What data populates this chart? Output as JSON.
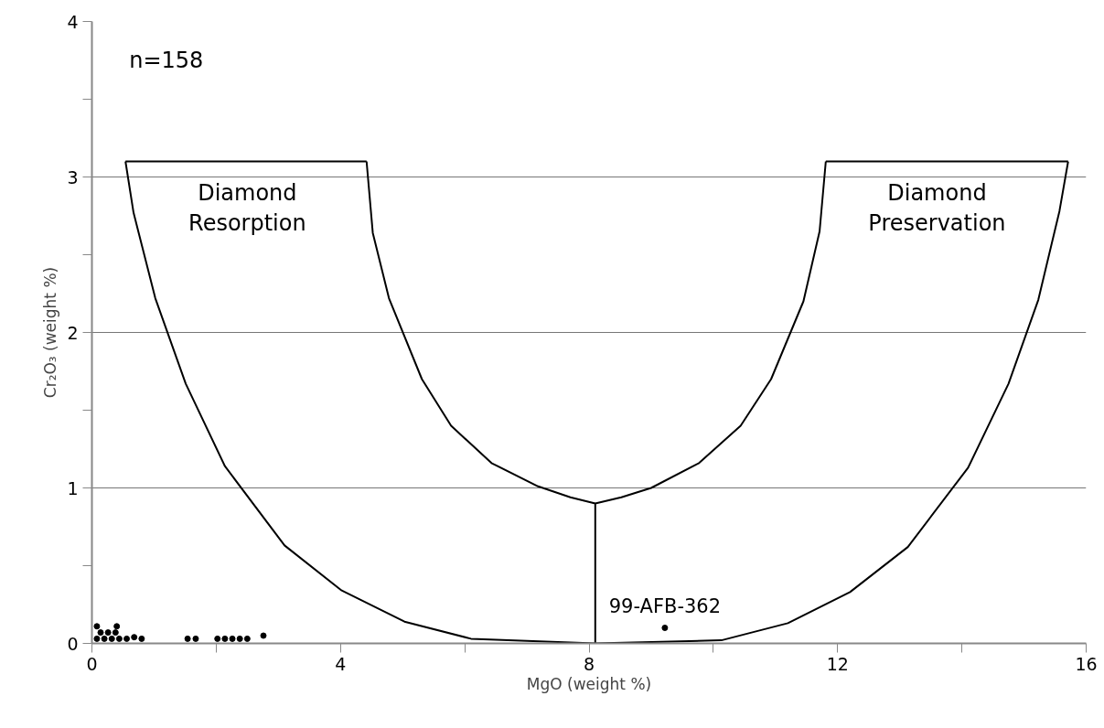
{
  "chart_data": {
    "type": "scatter",
    "xlabel": "MgO (weight %)",
    "ylabel": "Cr₂O₃ (weight %)",
    "xlim": [
      0,
      16
    ],
    "ylim": [
      0,
      4
    ],
    "xticks": [
      0,
      {
        "value": 2,
        "label": null
      },
      4,
      {
        "value": 6,
        "label": null
      },
      8,
      {
        "value": 10,
        "label": null
      },
      12,
      {
        "value": 14,
        "label": null
      },
      16
    ],
    "yticks": [
      0,
      {
        "value": 0.5,
        "label": null
      },
      1,
      {
        "value": 1.5,
        "label": null
      },
      2,
      {
        "value": 2.5,
        "label": null
      },
      3,
      {
        "value": 3.5,
        "label": null
      },
      4
    ],
    "grid": "y",
    "series": [
      {
        "type": "line",
        "color": "#000000",
        "x": [
          0.54,
          0.67,
          1.02,
          1.51,
          2.14,
          3.1,
          4.02,
          5.03,
          6.1,
          8.1,
          10.13,
          11.2,
          12.2,
          13.13,
          14.1,
          14.75,
          15.23,
          15.57,
          15.71,
          null,
          0.54,
          4.42,
          null,
          4.42,
          4.52,
          4.78,
          5.31,
          5.78,
          6.43,
          7.18,
          7.7,
          8.1,
          8.52,
          9.0,
          9.77,
          10.44,
          10.93,
          11.45,
          11.71,
          11.81,
          null,
          11.81,
          15.71,
          null,
          8.1,
          8.1
        ],
        "values": [
          3.1,
          2.77,
          2.22,
          1.67,
          1.14,
          0.63,
          0.34,
          0.14,
          0.03,
          0,
          0.02,
          0.13,
          0.33,
          0.62,
          1.13,
          1.67,
          2.21,
          2.78,
          3.1,
          null,
          3.1,
          3.1,
          null,
          3.1,
          2.64,
          2.22,
          1.7,
          1.4,
          1.16,
          1.01,
          0.94,
          0.9,
          0.94,
          1.0,
          1.16,
          1.4,
          1.7,
          2.2,
          2.65,
          3.1,
          null,
          3.1,
          3.1,
          null,
          0.9,
          0
        ]
      },
      {
        "marker": "circle",
        "color": "#000000",
        "x": [
          0.08,
          0.4,
          0.08,
          0.2,
          0.32,
          0.44,
          0.14,
          0.26,
          0.38,
          0.56,
          0.68,
          0.8,
          1.54,
          1.67,
          2.02,
          2.14,
          2.26,
          2.38,
          2.5,
          2.76,
          9.22
        ],
        "values": [
          0.11,
          0.11,
          0.03,
          0.03,
          0.03,
          0.03,
          0.07,
          0.07,
          0.07,
          0.03,
          0.04,
          0.03,
          0.03,
          0.03,
          0.03,
          0.03,
          0.03,
          0.03,
          0.03,
          0.05,
          0.1
        ]
      }
    ],
    "annotations": [
      "n=158",
      "Diamond\nResorption",
      "Diamond\nPreservation",
      {
        "text": "99-AFB-362",
        "x": 9.22,
        "y": 0.1
      }
    ]
  }
}
